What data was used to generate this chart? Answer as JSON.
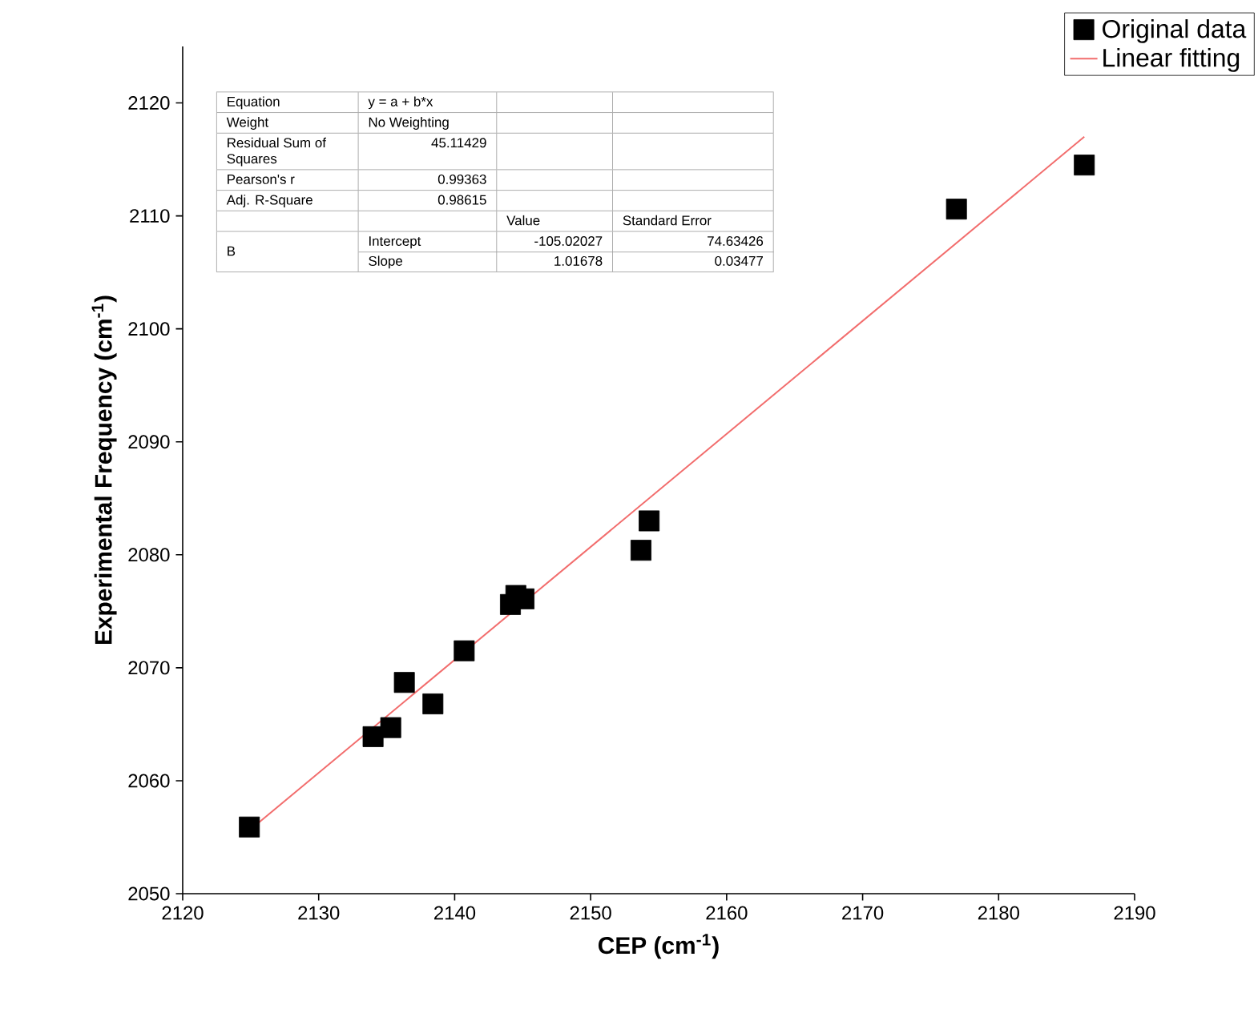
{
  "chart_data": {
    "type": "scatter",
    "xlabel": "CEP (cm$^{-1}$)",
    "ylabel": "Experimental Frequency (cm$^{-1}$)",
    "xlim": [
      2120,
      2190
    ],
    "ylim": [
      2050,
      2125
    ],
    "xticks": [
      2120,
      2130,
      2140,
      2150,
      2160,
      2170,
      2180,
      2190
    ],
    "yticks": [
      2050,
      2060,
      2070,
      2080,
      2090,
      2100,
      2110,
      2120
    ],
    "grid": false,
    "legend": "top right",
    "marker": "square",
    "series": [
      {
        "name": "Original data",
        "color": "#000000",
        "x": [
          2124.9,
          2134.0,
          2135.3,
          2136.3,
          2138.4,
          2140.7,
          2144.1,
          2144.5,
          2145.1,
          2153.7,
          2154.3,
          2176.9,
          2186.3
        ],
        "values": [
          2055.9,
          2063.9,
          2064.7,
          2068.7,
          2066.8,
          2071.5,
          2075.6,
          2076.4,
          2076.1,
          2080.4,
          2083.0,
          2110.6,
          2114.5
        ]
      },
      {
        "name": "Linear fitting",
        "type": "line",
        "color": "#f26d6d",
        "marker": "none",
        "line_style": "solid",
        "x": [
          2124.9,
          2186.3
        ],
        "values": [
          2055.6,
          2117.0
        ]
      }
    ],
    "annotations": [
      "Equation",
      "y = a + b*x",
      "Weight",
      "No Weighting",
      "Residual Sum of Squares",
      "45.11429",
      "Pearson's r",
      "0.99363",
      "Adj. R-Square",
      "0.98615",
      "Value",
      "Standard Error",
      "B",
      "Intercept",
      "-105.02027",
      "74.63426",
      "Slope",
      "1.01678",
      "0.03477"
    ]
  }
}
